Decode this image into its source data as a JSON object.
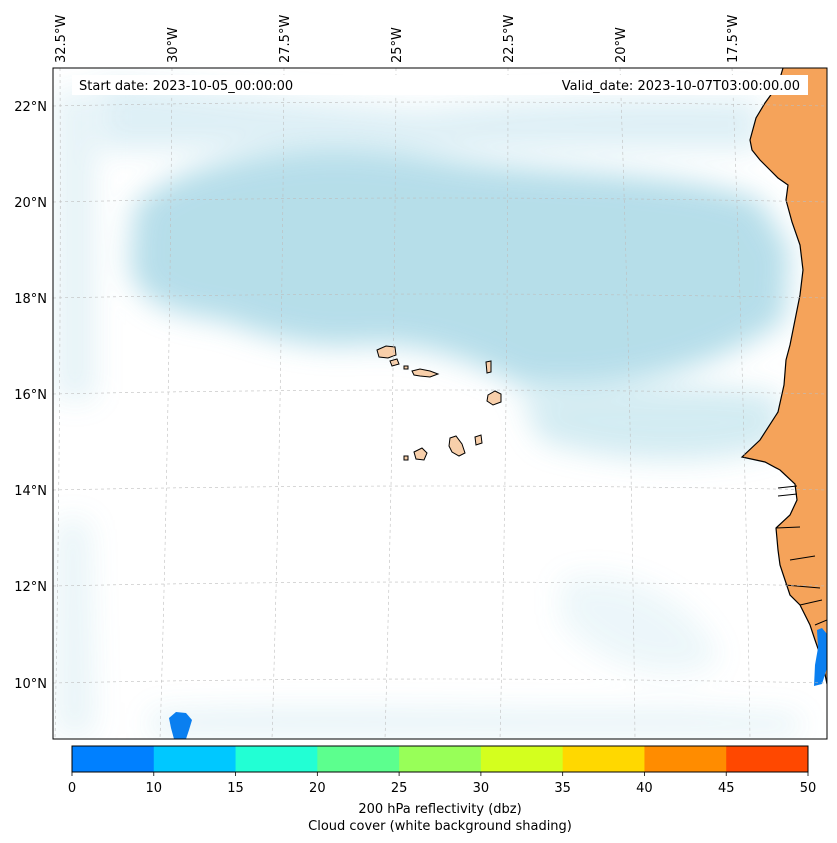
{
  "header": {
    "start_date": "Start date: 2023-10-05_00:00:00",
    "valid_date": "Valid_date: 2023-10-07T03:00:00.00"
  },
  "map": {
    "lon_labels": [
      "32.5°W",
      "30°W",
      "27.5°W",
      "25°W",
      "22.5°W",
      "20°W",
      "17.5°W"
    ],
    "lat_labels": [
      "22°N",
      "20°N",
      "18°N",
      "16°N",
      "14°N",
      "12°N",
      "10°N"
    ],
    "gridlines": true,
    "cloud_color": "#a9d8e6",
    "land_fill_color": "#f5a35a",
    "island_fill_color": "#f8cfaa",
    "reflectivity_cell_color": "#0a7ff0"
  },
  "colorbar": {
    "ticks": [
      "0",
      "10",
      "15",
      "20",
      "25",
      "30",
      "35",
      "40",
      "45",
      "50"
    ],
    "colors": [
      "#0080ff",
      "#00c8ff",
      "#22ffd4",
      "#5cff8e",
      "#98ff58",
      "#d4ff1e",
      "#ffd800",
      "#ff8c00",
      "#ff4800"
    ],
    "label": "200 hPa reflectivity (dbz)",
    "sublabel": "Cloud cover (white background shading)"
  }
}
